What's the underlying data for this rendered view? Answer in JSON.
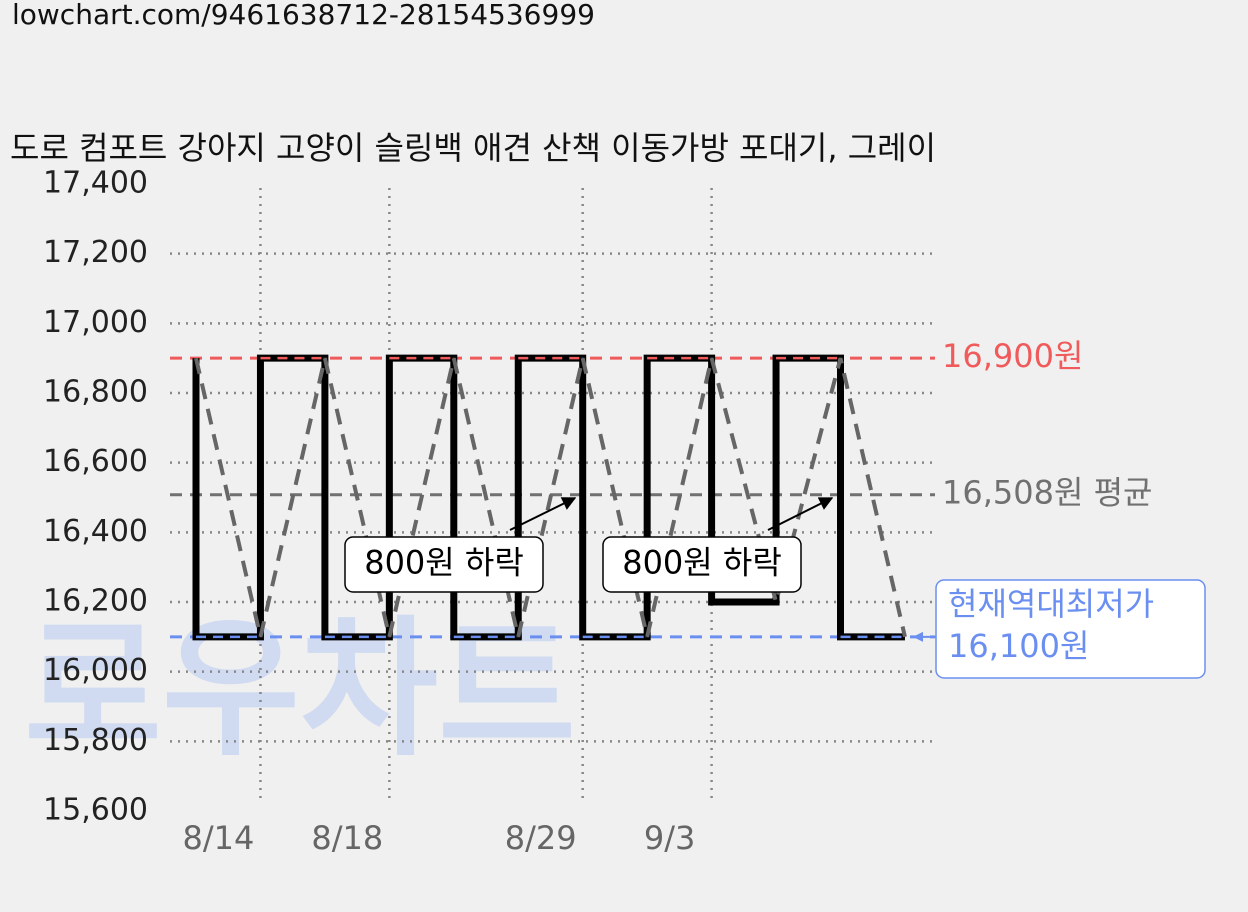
{
  "url": "lowchart.com/9461638712-28154536999",
  "watermark": "로우차트",
  "chart_data": {
    "type": "step",
    "title": "도로 컴포트 강아지 고양이 슬링백 애견 산책 이동가방 포대기, 그레이",
    "categories": [
      null,
      "8/14",
      null,
      "8/18",
      null,
      null,
      "8/29",
      null,
      "9/3",
      null,
      null,
      null
    ],
    "series": [
      {
        "color": "#000000",
        "values": [
          16900,
          16100,
          16900,
          16100,
          16900,
          16100,
          16900,
          16100,
          16900,
          16200,
          16900,
          16100
        ]
      }
    ],
    "ylim": [
      15600,
      17400
    ],
    "yticks": [
      {
        "value": 15600,
        "label": "15,600"
      },
      {
        "value": 15800,
        "label": "15,800"
      },
      {
        "value": 16000,
        "label": "16,000"
      },
      {
        "value": 16200,
        "label": "16,200"
      },
      {
        "value": 16400,
        "label": "16,400"
      },
      {
        "value": 16600,
        "label": "16,600"
      },
      {
        "value": 16800,
        "label": "16,800"
      },
      {
        "value": 17000,
        "label": "17,000"
      },
      {
        "value": 17200,
        "label": "17,200"
      },
      {
        "value": 17400,
        "label": "17,400"
      }
    ],
    "grid": true,
    "max_line": {
      "value": 16900,
      "label": "16,900원",
      "color": "#f05a5a"
    },
    "avg_line": {
      "value": 16508,
      "label": "16,508원 평균",
      "color": "#707070"
    },
    "min_line": {
      "value": 16100,
      "title": "현재역대최저가",
      "label": "16,100원",
      "color": "#6b8ff0"
    },
    "annotations": [
      {
        "label": "800원 하락"
      },
      {
        "label": "800원 하락"
      }
    ]
  }
}
